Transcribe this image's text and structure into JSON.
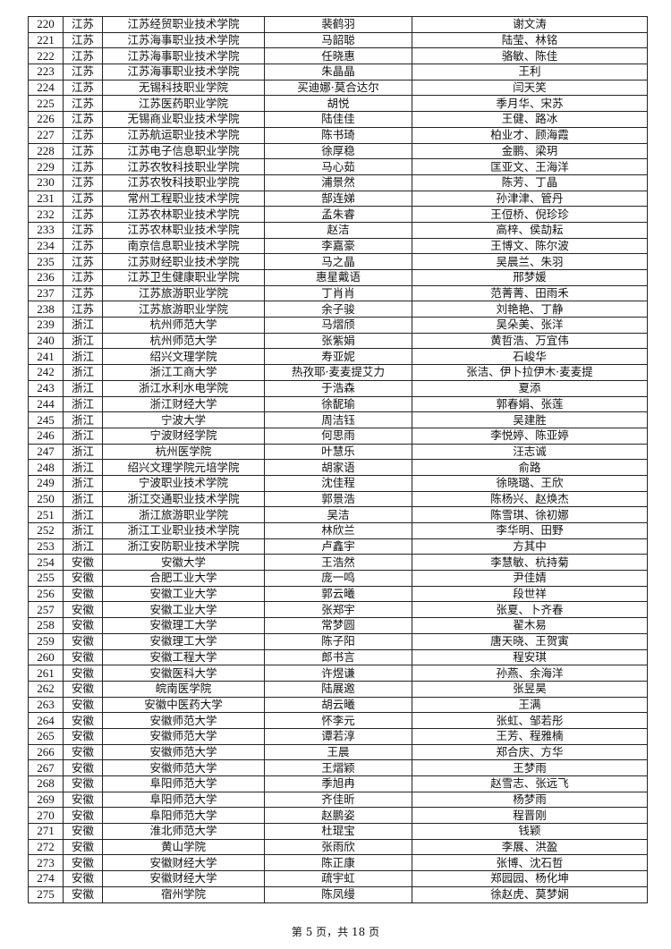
{
  "rows": [
    [
      "220",
      "江苏",
      "江苏经贸职业技术学院",
      "裴鹤羽",
      "谢文涛"
    ],
    [
      "221",
      "江苏",
      "江苏海事职业技术学院",
      "马韶聪",
      "陆莹、林铭"
    ],
    [
      "222",
      "江苏",
      "江苏海事职业技术学院",
      "任晓惠",
      "骆敏、陈佳"
    ],
    [
      "223",
      "江苏",
      "江苏海事职业技术学院",
      "朱晶晶",
      "王利"
    ],
    [
      "224",
      "江苏",
      "无锡科技职业学院",
      "买迪娜·莫合达尔",
      "闫天笑"
    ],
    [
      "225",
      "江苏",
      "江苏医药职业学院",
      "胡悦",
      "季月华、宋苏"
    ],
    [
      "226",
      "江苏",
      "无锡商业职业技术学院",
      "陆佳佳",
      "王健、路冰"
    ],
    [
      "227",
      "江苏",
      "江苏航运职业技术学院",
      "陈书琦",
      "柏业才、顾海霞"
    ],
    [
      "228",
      "江苏",
      "江苏电子信息职业学院",
      "徐厚稳",
      "金鹏、梁玥"
    ],
    [
      "229",
      "江苏",
      "江苏农牧科技职业学院",
      "马心茹",
      "匡亚文、王海洋"
    ],
    [
      "230",
      "江苏",
      "江苏农牧科技职业学院",
      "浦景然",
      "陈芳、丁晶"
    ],
    [
      "231",
      "江苏",
      "常州工程职业技术学院",
      "郜连娣",
      "孙津津、管丹"
    ],
    [
      "232",
      "江苏",
      "江苏农林职业技术学院",
      "孟朱睿",
      "王侸桥、倪珍珍"
    ],
    [
      "233",
      "江苏",
      "江苏农林职业技术学院",
      "赵洁",
      "高梓、侯劼耘"
    ],
    [
      "234",
      "江苏",
      "南京信息职业技术学院",
      "李嘉豪",
      "王博文、陈尔波"
    ],
    [
      "235",
      "江苏",
      "江苏财经职业技术学院",
      "马之晶",
      "吴晨兰、朱羽"
    ],
    [
      "236",
      "江苏",
      "江苏卫生健康职业学院",
      "惠星戴语",
      "邢梦媛"
    ],
    [
      "237",
      "江苏",
      "江苏旅游职业学院",
      "丁肖肖",
      "范菁菁、田雨禾"
    ],
    [
      "238",
      "江苏",
      "江苏旅游职业学院",
      "余子骏",
      "刘艳艳、丁静"
    ],
    [
      "239",
      "浙江",
      "杭州师范大学",
      "马熠颀",
      "吴朵美、张洋"
    ],
    [
      "240",
      "浙江",
      "杭州师范大学",
      "张紫娟",
      "黄哲浩、万宜伟"
    ],
    [
      "241",
      "浙江",
      "绍兴文理学院",
      "寿亚妮",
      "石峻华"
    ],
    [
      "242",
      "浙江",
      "浙江工商大学",
      "热孜耶·麦麦提艾力",
      "张洁、伊卜拉伊木·麦麦提"
    ],
    [
      "243",
      "浙江",
      "浙江水利水电学院",
      "于浩森",
      "夏添"
    ],
    [
      "244",
      "浙江",
      "浙江财经大学",
      "徐馜瑜",
      "郭春娟、张莲"
    ],
    [
      "245",
      "浙江",
      "宁波大学",
      "周洁钰",
      "吴建胜"
    ],
    [
      "246",
      "浙江",
      "宁波财经学院",
      "何思雨",
      "李悦婷、陈亚婷"
    ],
    [
      "247",
      "浙江",
      "杭州医学院",
      "叶慧乐",
      "汪志诚"
    ],
    [
      "248",
      "浙江",
      "绍兴文理学院元培学院",
      "胡家语",
      "俞路"
    ],
    [
      "249",
      "浙江",
      "宁波职业技术学院",
      "沈佳程",
      "徐晓璐、王欣"
    ],
    [
      "250",
      "浙江",
      "浙江交通职业技术学院",
      "郭景浩",
      "陈杨兴、赵焕杰"
    ],
    [
      "251",
      "浙江",
      "浙江旅游职业学院",
      "吴洁",
      "陈雪琪、徐初娜"
    ],
    [
      "252",
      "浙江",
      "浙江工业职业技术学院",
      "林欣兰",
      "李华明、田野"
    ],
    [
      "253",
      "浙江",
      "浙江安防职业技术学院",
      "卢鑫宇",
      "方其中"
    ],
    [
      "254",
      "安徽",
      "安徽大学",
      "王浩然",
      "李慧敏、杭持菊"
    ],
    [
      "255",
      "安徽",
      "合肥工业大学",
      "庞一鸣",
      "尹佳婧"
    ],
    [
      "256",
      "安徽",
      "安徽工业大学",
      "郭云曦",
      "段世祥"
    ],
    [
      "257",
      "安徽",
      "安徽工业大学",
      "张郑宇",
      "张夏、卜齐春"
    ],
    [
      "258",
      "安徽",
      "安徽理工大学",
      "常梦圆",
      "翟木易"
    ],
    [
      "259",
      "安徽",
      "安徽理工大学",
      "陈子阳",
      "唐天晓、王贺寅"
    ],
    [
      "260",
      "安徽",
      "安徽工程大学",
      "郎书言",
      "程安琪"
    ],
    [
      "261",
      "安徽",
      "安徽医科大学",
      "许煜谦",
      "孙燕、余海洋"
    ],
    [
      "262",
      "安徽",
      "皖南医学院",
      "陆展邀",
      "张昱昊"
    ],
    [
      "263",
      "安徽",
      "安徽中医药大学",
      "胡云曦",
      "王满"
    ],
    [
      "264",
      "安徽",
      "安徽师范大学",
      "怀李元",
      "张虹、邹若彤"
    ],
    [
      "265",
      "安徽",
      "安徽师范大学",
      "谭若淳",
      "王芳、程雅楠"
    ],
    [
      "266",
      "安徽",
      "安徽师范大学",
      "王晨",
      "郑合庆、方华"
    ],
    [
      "267",
      "安徽",
      "安徽师范大学",
      "王熠颖",
      "王梦雨"
    ],
    [
      "268",
      "安徽",
      "阜阳师范大学",
      "季旭冉",
      "赵雪志、张远飞"
    ],
    [
      "269",
      "安徽",
      "阜阳师范大学",
      "齐佳昕",
      "杨梦雨"
    ],
    [
      "270",
      "安徽",
      "阜阳师范大学",
      "赵鹏姿",
      "程晋刚"
    ],
    [
      "271",
      "安徽",
      "淮北师范大学",
      "杜琨宝",
      "钱颖"
    ],
    [
      "272",
      "安徽",
      "黄山学院",
      "张雨欣",
      "李展、洪盈"
    ],
    [
      "273",
      "安徽",
      "安徽财经大学",
      "陈正康",
      "张博、沈石哲"
    ],
    [
      "274",
      "安徽",
      "安徽财经大学",
      "疏宇虹",
      "郑园园、杨化坤"
    ],
    [
      "275",
      "安徽",
      "宿州学院",
      "陈凤缦",
      "徐赵虎、莫梦娴"
    ]
  ],
  "footer": "第 5 页，共 18 页"
}
